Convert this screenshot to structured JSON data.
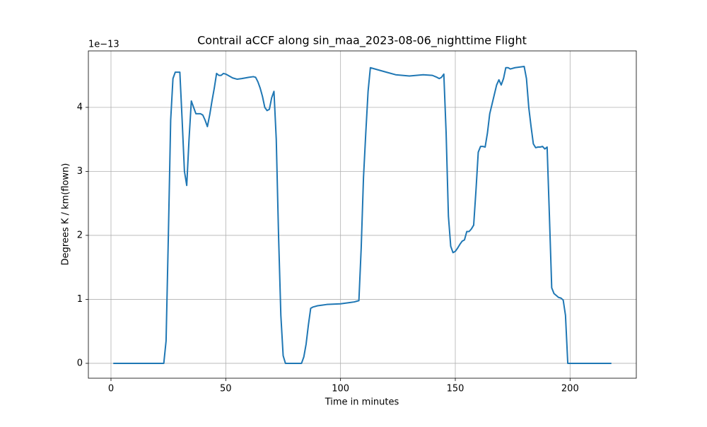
{
  "chart_data": {
    "type": "line",
    "title": "Contrail aCCF along sin_maa_2023-08-06_nighttime Flight",
    "x_label": "Time in minutes",
    "y_label": "Degrees K / km(flown)",
    "y_offset_text": "1e−13",
    "x": [
      1,
      23,
      24,
      25,
      26,
      27,
      28,
      30,
      31,
      32,
      33,
      34,
      35,
      37,
      39,
      40,
      41,
      42,
      43,
      44,
      45,
      46,
      47,
      48,
      49,
      50,
      53,
      55,
      57,
      60,
      62,
      63,
      64,
      65,
      66,
      67,
      68,
      69,
      70,
      71,
      72,
      73,
      74,
      75,
      76,
      83,
      84,
      85,
      86,
      87,
      88,
      90,
      92,
      94,
      100,
      104,
      106,
      108,
      109,
      110,
      111,
      112,
      113,
      116,
      120,
      124,
      130,
      136,
      140,
      142,
      143,
      144,
      145,
      146,
      147,
      148,
      149,
      150,
      151,
      152,
      153,
      154,
      155,
      156,
      157,
      158,
      159,
      160,
      161,
      162,
      163,
      164,
      165,
      166,
      167,
      168,
      169,
      170,
      171,
      172,
      173,
      174,
      176,
      178,
      180,
      181,
      182,
      183,
      184,
      185,
      186,
      187,
      188,
      189,
      190,
      191,
      192,
      193,
      194,
      195,
      196,
      197,
      198,
      199,
      218
    ],
    "series": [
      {
        "name": "aCCF",
        "color": "#1f77b4",
        "values": [
          0,
          0,
          0.35,
          2.0,
          3.8,
          4.45,
          4.55,
          4.55,
          3.8,
          3.0,
          2.78,
          3.5,
          4.1,
          3.9,
          3.9,
          3.88,
          3.8,
          3.7,
          3.88,
          4.1,
          4.3,
          4.53,
          4.5,
          4.5,
          4.53,
          4.52,
          4.46,
          4.44,
          4.45,
          4.47,
          4.48,
          4.47,
          4.4,
          4.3,
          4.17,
          4.0,
          3.95,
          3.97,
          4.15,
          4.25,
          3.5,
          2.0,
          0.75,
          0.12,
          0,
          0,
          0.1,
          0.3,
          0.6,
          0.86,
          0.88,
          0.9,
          0.91,
          0.92,
          0.93,
          0.95,
          0.96,
          0.98,
          1.8,
          2.9,
          3.6,
          4.25,
          4.62,
          4.59,
          4.55,
          4.51,
          4.49,
          4.51,
          4.5,
          4.47,
          4.45,
          4.47,
          4.52,
          3.6,
          2.3,
          1.83,
          1.73,
          1.75,
          1.8,
          1.86,
          1.91,
          1.93,
          2.06,
          2.06,
          2.1,
          2.16,
          2.7,
          3.3,
          3.39,
          3.39,
          3.38,
          3.6,
          3.9,
          4.05,
          4.2,
          4.35,
          4.43,
          4.35,
          4.45,
          4.62,
          4.62,
          4.6,
          4.62,
          4.63,
          4.64,
          4.45,
          4.0,
          3.7,
          3.43,
          3.37,
          3.38,
          3.38,
          3.39,
          3.35,
          3.38,
          2.3,
          1.18,
          1.09,
          1.06,
          1.03,
          1.02,
          0.99,
          0.75,
          0,
          0
        ]
      }
    ],
    "xlim": [
      -9.85,
      228.85
    ],
    "ylim": [
      -0.2325,
      4.8825
    ],
    "xticks": [
      0,
      50,
      100,
      150,
      200
    ],
    "yticks": [
      0,
      1,
      2,
      3,
      4
    ],
    "grid": true
  }
}
